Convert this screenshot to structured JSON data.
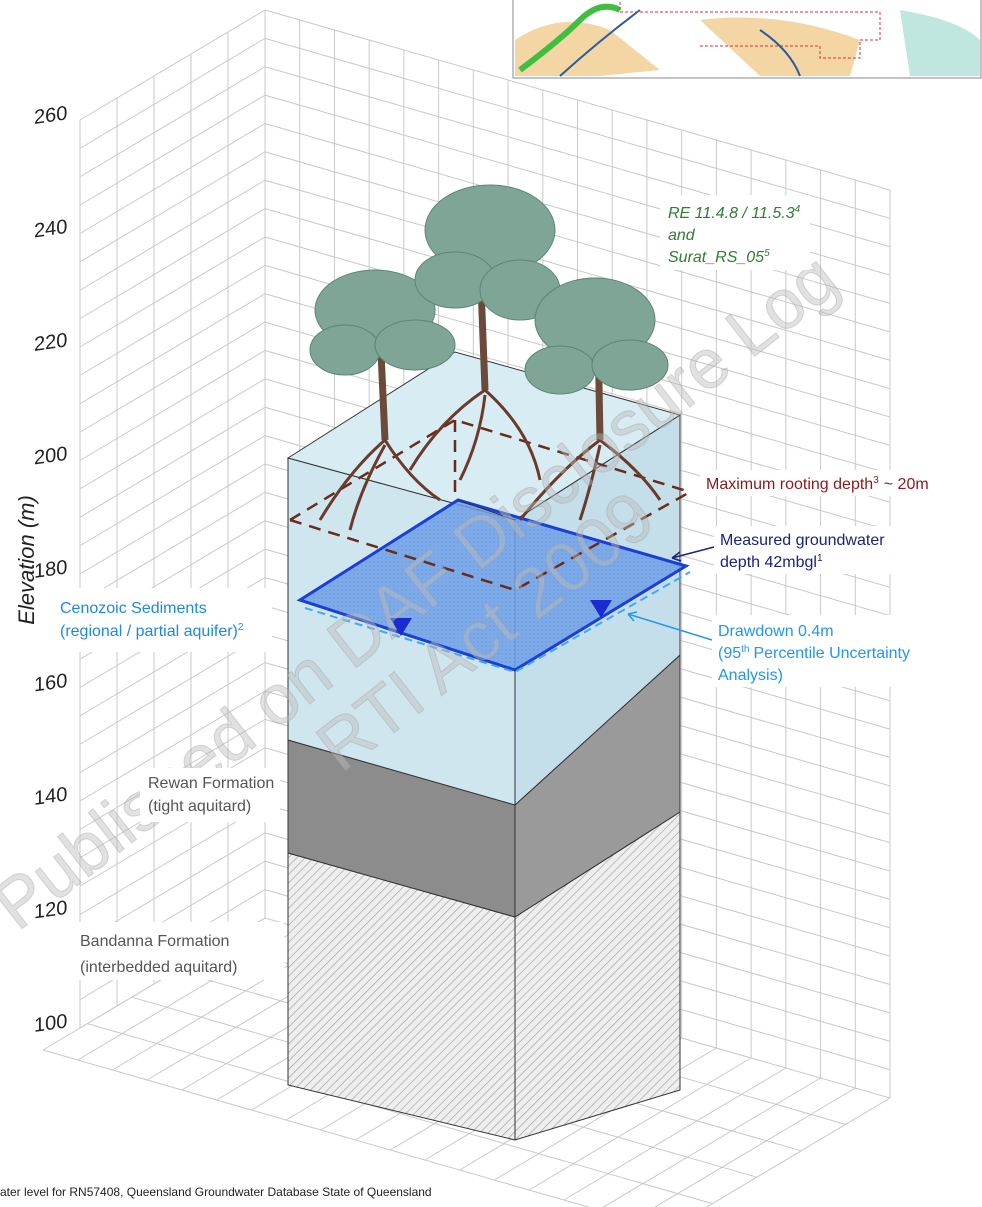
{
  "axis": {
    "title": "Elevation (m)",
    "ticks": [
      260,
      240,
      220,
      200,
      180,
      160,
      140,
      120,
      100
    ]
  },
  "labels": {
    "vegetation": {
      "line1": "RE 11.4.8 / 11.5.3",
      "line1_sup": "4",
      "line2": "and",
      "line3": "Surat_RS_05",
      "line3_sup": "5"
    },
    "rooting_depth": {
      "text": "Maximum rooting depth",
      "sup": "3",
      "suffix": "~ 20m"
    },
    "groundwater": {
      "line1": "Measured groundwater",
      "line2": "depth 42mbgl",
      "line2_sup": "1"
    },
    "cenozoic": {
      "line1": "Cenozoic Sediments",
      "line2": "(regional / partial aquifer)",
      "line2_sup": "2"
    },
    "drawdown": {
      "line1": "Drawdown 0.4m",
      "line2_pre": "(95",
      "line2_sup": "th",
      "line2_post": "Percentile Uncertainty",
      "line3": "Analysis)"
    },
    "rewan": {
      "line1": "Rewan Formation",
      "line2": "(tight aquitard)"
    },
    "bandanna": {
      "line1": "Bandanna Formation",
      "line2": "(interbedded aquitard)"
    }
  },
  "footer": "ater level for RN57408, Queensland Groundwater Database State of Queensland",
  "watermark": {
    "line1": "Published on DAF Disclosure Log",
    "line2": "RTI Act 2009"
  }
}
